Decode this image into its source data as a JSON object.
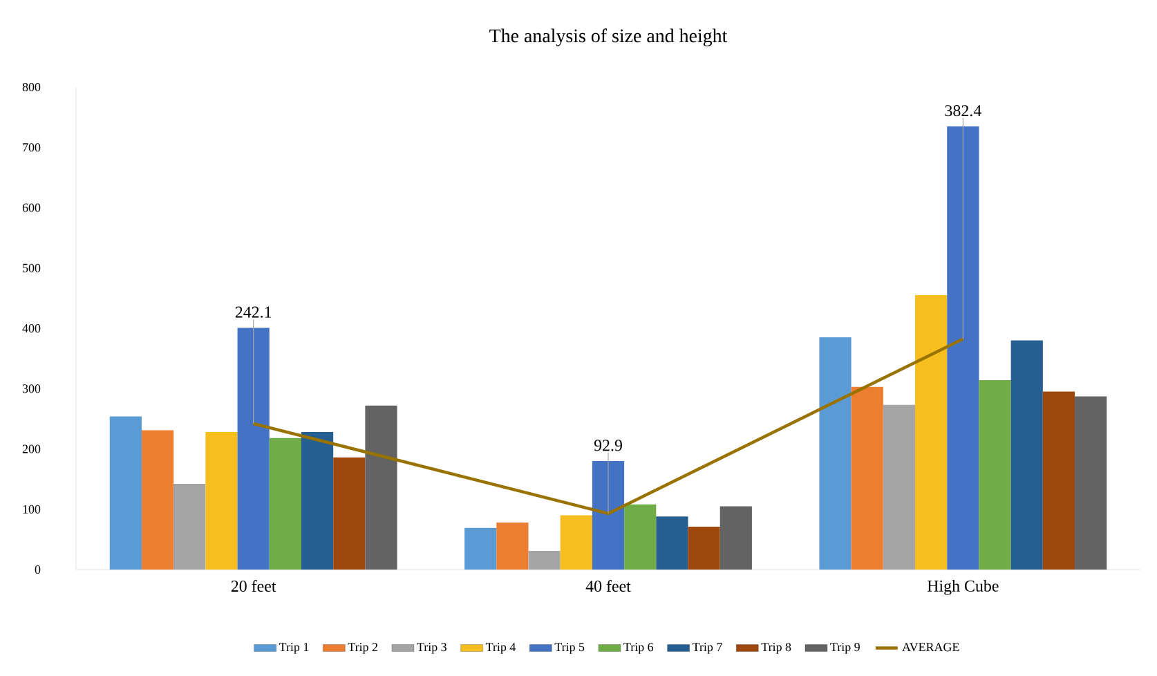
{
  "chart_data": {
    "type": "bar",
    "title": "The analysis of size and height",
    "categories": [
      "20 feet",
      "40 feet",
      "High Cube"
    ],
    "ylim": [
      0,
      800
    ],
    "yticks": [
      0,
      100,
      200,
      300,
      400,
      500,
      600,
      700,
      800
    ],
    "grid": false,
    "legend": "bottom",
    "series": [
      {
        "name": "Trip 1",
        "color": "#5b9bd5",
        "values": [
          254,
          69,
          385
        ]
      },
      {
        "name": "Trip 2",
        "color": "#ed7d31",
        "values": [
          231,
          78,
          303
        ]
      },
      {
        "name": "Trip 3",
        "color": "#a5a5a5",
        "values": [
          142,
          31,
          273
        ]
      },
      {
        "name": "Trip 4",
        "color": "#f6be1e",
        "values": [
          228,
          90,
          455
        ]
      },
      {
        "name": "Trip 5",
        "color": "#4472c4",
        "values": [
          401,
          180,
          735
        ]
      },
      {
        "name": "Trip 6",
        "color": "#70ad47",
        "values": [
          218,
          108,
          314
        ]
      },
      {
        "name": "Trip 7",
        "color": "#255e91",
        "values": [
          228,
          88,
          380
        ]
      },
      {
        "name": "Trip 8",
        "color": "#9e480e",
        "values": [
          186,
          71,
          295
        ]
      },
      {
        "name": "Trip 9",
        "color": "#636363",
        "values": [
          272,
          105,
          287
        ]
      },
      {
        "name": "AVERAGE",
        "type": "line",
        "color": "#997300",
        "values": [
          242.1,
          92.9,
          382.4
        ],
        "value_labels": [
          "242.1",
          "92.9",
          "382.4"
        ]
      }
    ]
  }
}
